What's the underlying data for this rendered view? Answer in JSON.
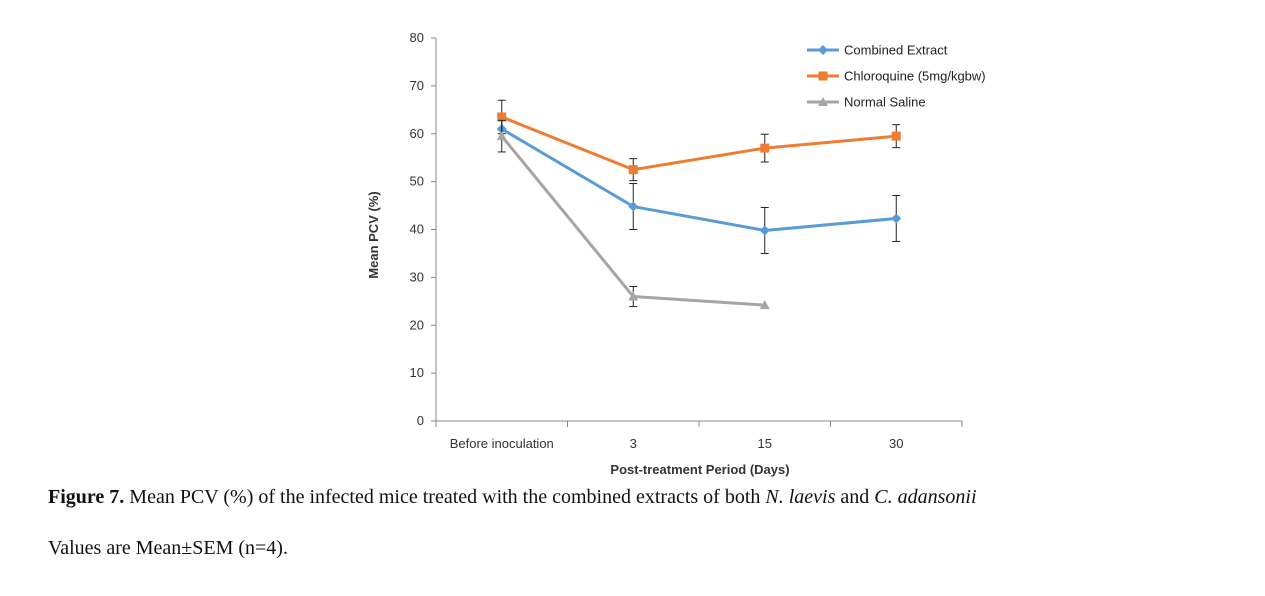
{
  "chart_data": {
    "type": "line",
    "categories": [
      "Before inoculation",
      "3",
      "15",
      "30"
    ],
    "xlabel": "Post-treatment Period (Days)",
    "ylabel": "Mean PCV (%)",
    "ylim": [
      0,
      80
    ],
    "yticks": [
      0,
      10,
      20,
      30,
      40,
      50,
      60,
      70,
      80
    ],
    "grid": false,
    "legend_position": "top-right",
    "series": [
      {
        "name": "Combined Extract",
        "color": "#5b9bd5",
        "marker": "diamond",
        "values": [
          61,
          44.8,
          39.8,
          42.3
        ],
        "errors": [
          2.2,
          4.8,
          4.8,
          4.8
        ]
      },
      {
        "name": "Chloroquine (5mg/kgbw)",
        "color": "#ed7d31",
        "marker": "square",
        "values": [
          63.5,
          52.5,
          57,
          59.5
        ],
        "errors": [
          3.5,
          2.3,
          2.9,
          2.4
        ]
      },
      {
        "name": "Normal Saline",
        "color": "#a5a5a5",
        "marker": "triangle",
        "values": [
          59.5,
          26,
          24.2,
          null
        ],
        "errors": [
          3.3,
          2.1,
          0,
          null
        ]
      }
    ]
  },
  "caption": {
    "figure_label": "Figure 7.",
    "text_before_species1": " Mean PCV (%) of the infected mice treated with the combined extracts of both ",
    "species1": "N. laevis",
    "text_between": " and ",
    "species2": "C. adansonii",
    "line2": "Values are Mean±SEM (n=4)."
  }
}
